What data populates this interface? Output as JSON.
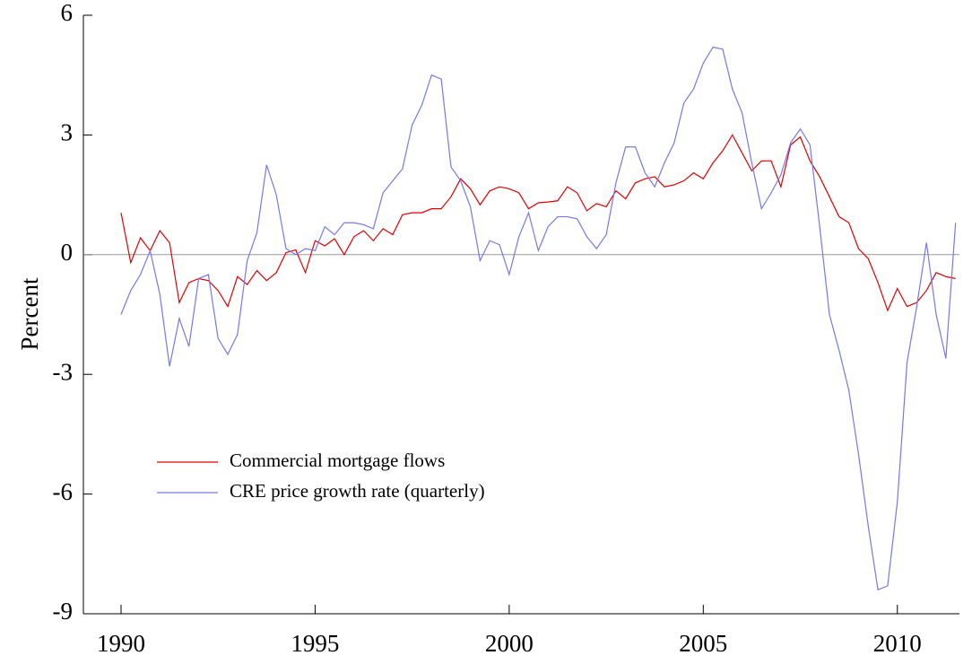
{
  "chart_data": {
    "type": "line",
    "ylabel": "Percent",
    "x": [
      1990,
      1990.25,
      1990.5,
      1990.75,
      1991,
      1991.25,
      1991.5,
      1991.75,
      1992,
      1992.25,
      1992.5,
      1992.75,
      1993,
      1993.25,
      1993.5,
      1993.75,
      1994,
      1994.25,
      1994.5,
      1994.75,
      1995,
      1995.25,
      1995.5,
      1995.75,
      1996,
      1996.25,
      1996.5,
      1996.75,
      1997,
      1997.25,
      1997.5,
      1997.75,
      1998,
      1998.25,
      1998.5,
      1998.75,
      1999,
      1999.25,
      1999.5,
      1999.75,
      2000,
      2000.25,
      2000.5,
      2000.75,
      2001,
      2001.25,
      2001.5,
      2001.75,
      2002,
      2002.25,
      2002.5,
      2002.75,
      2003,
      2003.25,
      2003.5,
      2003.75,
      2004,
      2004.25,
      2004.5,
      2004.75,
      2005,
      2005.25,
      2005.5,
      2005.75,
      2006,
      2006.25,
      2006.5,
      2006.75,
      2007,
      2007.25,
      2007.5,
      2007.75,
      2008,
      2008.25,
      2008.5,
      2008.75,
      2009,
      2009.25,
      2009.5,
      2009.75,
      2010,
      2010.25,
      2010.5,
      2010.75,
      2011,
      2011.25,
      2011.5
    ],
    "series": [
      {
        "name": "Commercial mortgage flows",
        "color": "#e00000",
        "values": [
          1.05,
          -0.2,
          0.42,
          0.1,
          0.6,
          0.3,
          -1.2,
          -0.7,
          -0.6,
          -0.65,
          -0.9,
          -1.3,
          -0.55,
          -0.75,
          -0.4,
          -0.65,
          -0.45,
          0.05,
          0.12,
          -0.45,
          0.35,
          0.22,
          0.4,
          0.0,
          0.45,
          0.6,
          0.35,
          0.65,
          0.5,
          1.0,
          1.05,
          1.05,
          1.15,
          1.15,
          1.45,
          1.9,
          1.65,
          1.25,
          1.6,
          1.7,
          1.65,
          1.55,
          1.15,
          1.3,
          1.32,
          1.35,
          1.7,
          1.55,
          1.1,
          1.28,
          1.2,
          1.6,
          1.4,
          1.8,
          1.9,
          1.95,
          1.7,
          1.75,
          1.85,
          2.05,
          1.9,
          2.3,
          2.6,
          3.0,
          2.55,
          2.1,
          2.35,
          2.35,
          1.7,
          2.75,
          2.95,
          2.35,
          1.95,
          1.45,
          0.95,
          0.8,
          0.15,
          -0.1,
          -0.7,
          -1.4,
          -0.85,
          -1.3,
          -1.2,
          -0.9,
          -0.45,
          -0.55,
          -0.6
        ]
      },
      {
        "name": "CRE price growth rate (quarterly)",
        "color": "#7777ee",
        "values": [
          -1.5,
          -0.9,
          -0.5,
          0.1,
          -1.0,
          -2.8,
          -1.6,
          -2.3,
          -0.6,
          -0.5,
          -2.1,
          -2.5,
          -2.0,
          -0.15,
          0.55,
          2.25,
          1.5,
          0.15,
          0.0,
          0.15,
          0.1,
          0.7,
          0.5,
          0.8,
          0.8,
          0.75,
          0.65,
          1.55,
          1.85,
          2.15,
          3.25,
          3.75,
          4.5,
          4.4,
          2.2,
          1.85,
          1.2,
          -0.15,
          0.35,
          0.25,
          -0.5,
          0.45,
          1.05,
          0.1,
          0.7,
          0.95,
          0.95,
          0.9,
          0.45,
          0.15,
          0.5,
          1.8,
          2.7,
          2.7,
          2.05,
          1.7,
          2.3,
          2.8,
          3.8,
          4.15,
          4.8,
          5.2,
          5.15,
          4.15,
          3.55,
          2.3,
          1.15,
          1.55,
          2.0,
          2.8,
          3.15,
          2.75,
          0.7,
          -1.5,
          -2.4,
          -3.4,
          -5.0,
          -6.8,
          -8.4,
          -8.3,
          -6.2,
          -2.7,
          -1.3,
          0.3,
          -1.5,
          -2.6,
          0.8
        ]
      }
    ],
    "xlim": [
      1989.03,
      2011.6
    ],
    "xticks": [
      1990,
      1995,
      2000,
      2005,
      2010
    ],
    "ylim": [
      -9,
      6
    ],
    "yticks": [
      -9,
      -6,
      -3,
      0,
      3,
      6
    ],
    "zero_line": true,
    "grid": false
  }
}
